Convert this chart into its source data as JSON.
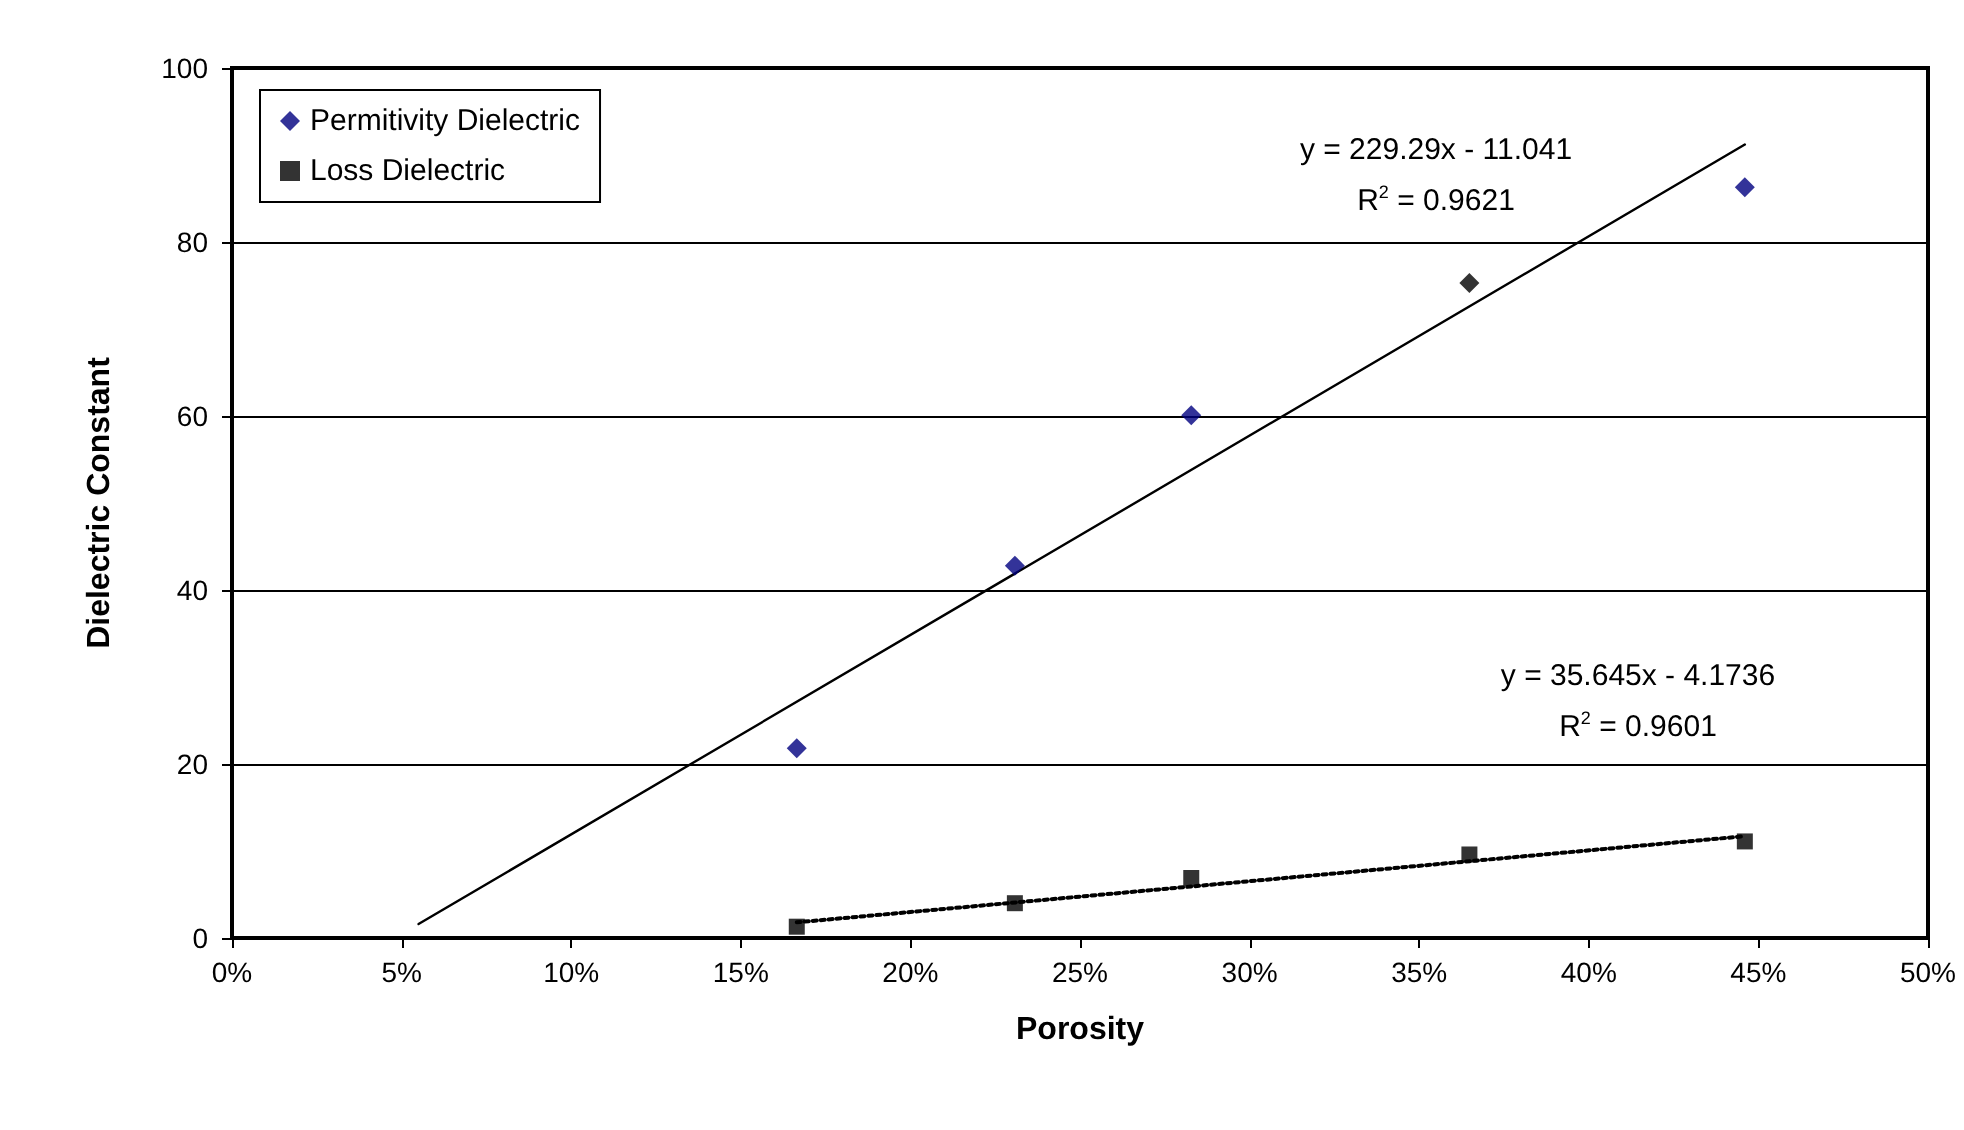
{
  "chart_data": {
    "type": "scatter",
    "xlabel": "Porosity",
    "ylabel": "Dielectric Constant",
    "xlim": [
      0,
      0.5
    ],
    "xticks": [
      {
        "value": 0,
        "label": "0%"
      },
      {
        "value": 0.05,
        "label": "5%"
      },
      {
        "value": 0.1,
        "label": "10%"
      },
      {
        "value": 0.15,
        "label": "15%"
      },
      {
        "value": 0.2,
        "label": "20%"
      },
      {
        "value": 0.25,
        "label": "25%"
      },
      {
        "value": 0.3,
        "label": "30%"
      },
      {
        "value": 0.35,
        "label": "35%"
      },
      {
        "value": 0.4,
        "label": "40%"
      },
      {
        "value": 0.45,
        "label": "45%"
      },
      {
        "value": 0.5,
        "label": "50%"
      }
    ],
    "ylim": [
      0,
      100
    ],
    "yticks": [
      0,
      20,
      40,
      60,
      80,
      100
    ],
    "grid": "y",
    "legend": "top left",
    "series": [
      {
        "name": "Permitivity Dielectric",
        "color": "#000080",
        "colors": [
          "#000080",
          "#000080",
          "#000080",
          "#000000",
          "#000080"
        ],
        "marker": "diamond",
        "x": [
          0.1665,
          0.2308,
          0.2828,
          0.3648,
          0.446
        ],
        "values": [
          21.8,
          42.8,
          60.1,
          75.3,
          86.3
        ]
      },
      {
        "name": "Loss Dielectric",
        "color": "#000000",
        "marker": "square",
        "x": [
          0.1665,
          0.2308,
          0.2828,
          0.3648,
          0.446
        ],
        "values": [
          1.3,
          4.0,
          6.9,
          9.6,
          11.1
        ]
      },
      {
        "type": "line",
        "color": "#000000",
        "marker": "none",
        "line_style": "solid",
        "x": [
          0.055,
          0.446
        ],
        "values": [
          1.6,
          91.2
        ]
      },
      {
        "type": "line",
        "color": "#000000",
        "marker": "none",
        "line_style": "dotted",
        "x": [
          0.1665,
          0.446
        ],
        "values": [
          1.8,
          11.7
        ]
      }
    ],
    "annotations": [
      "y = 229.29x - 11.041",
      "R$^{2}$ = 0.9621",
      "y = 35.645x - 4.1736",
      "R$^{2}$ = 0.9601"
    ]
  }
}
